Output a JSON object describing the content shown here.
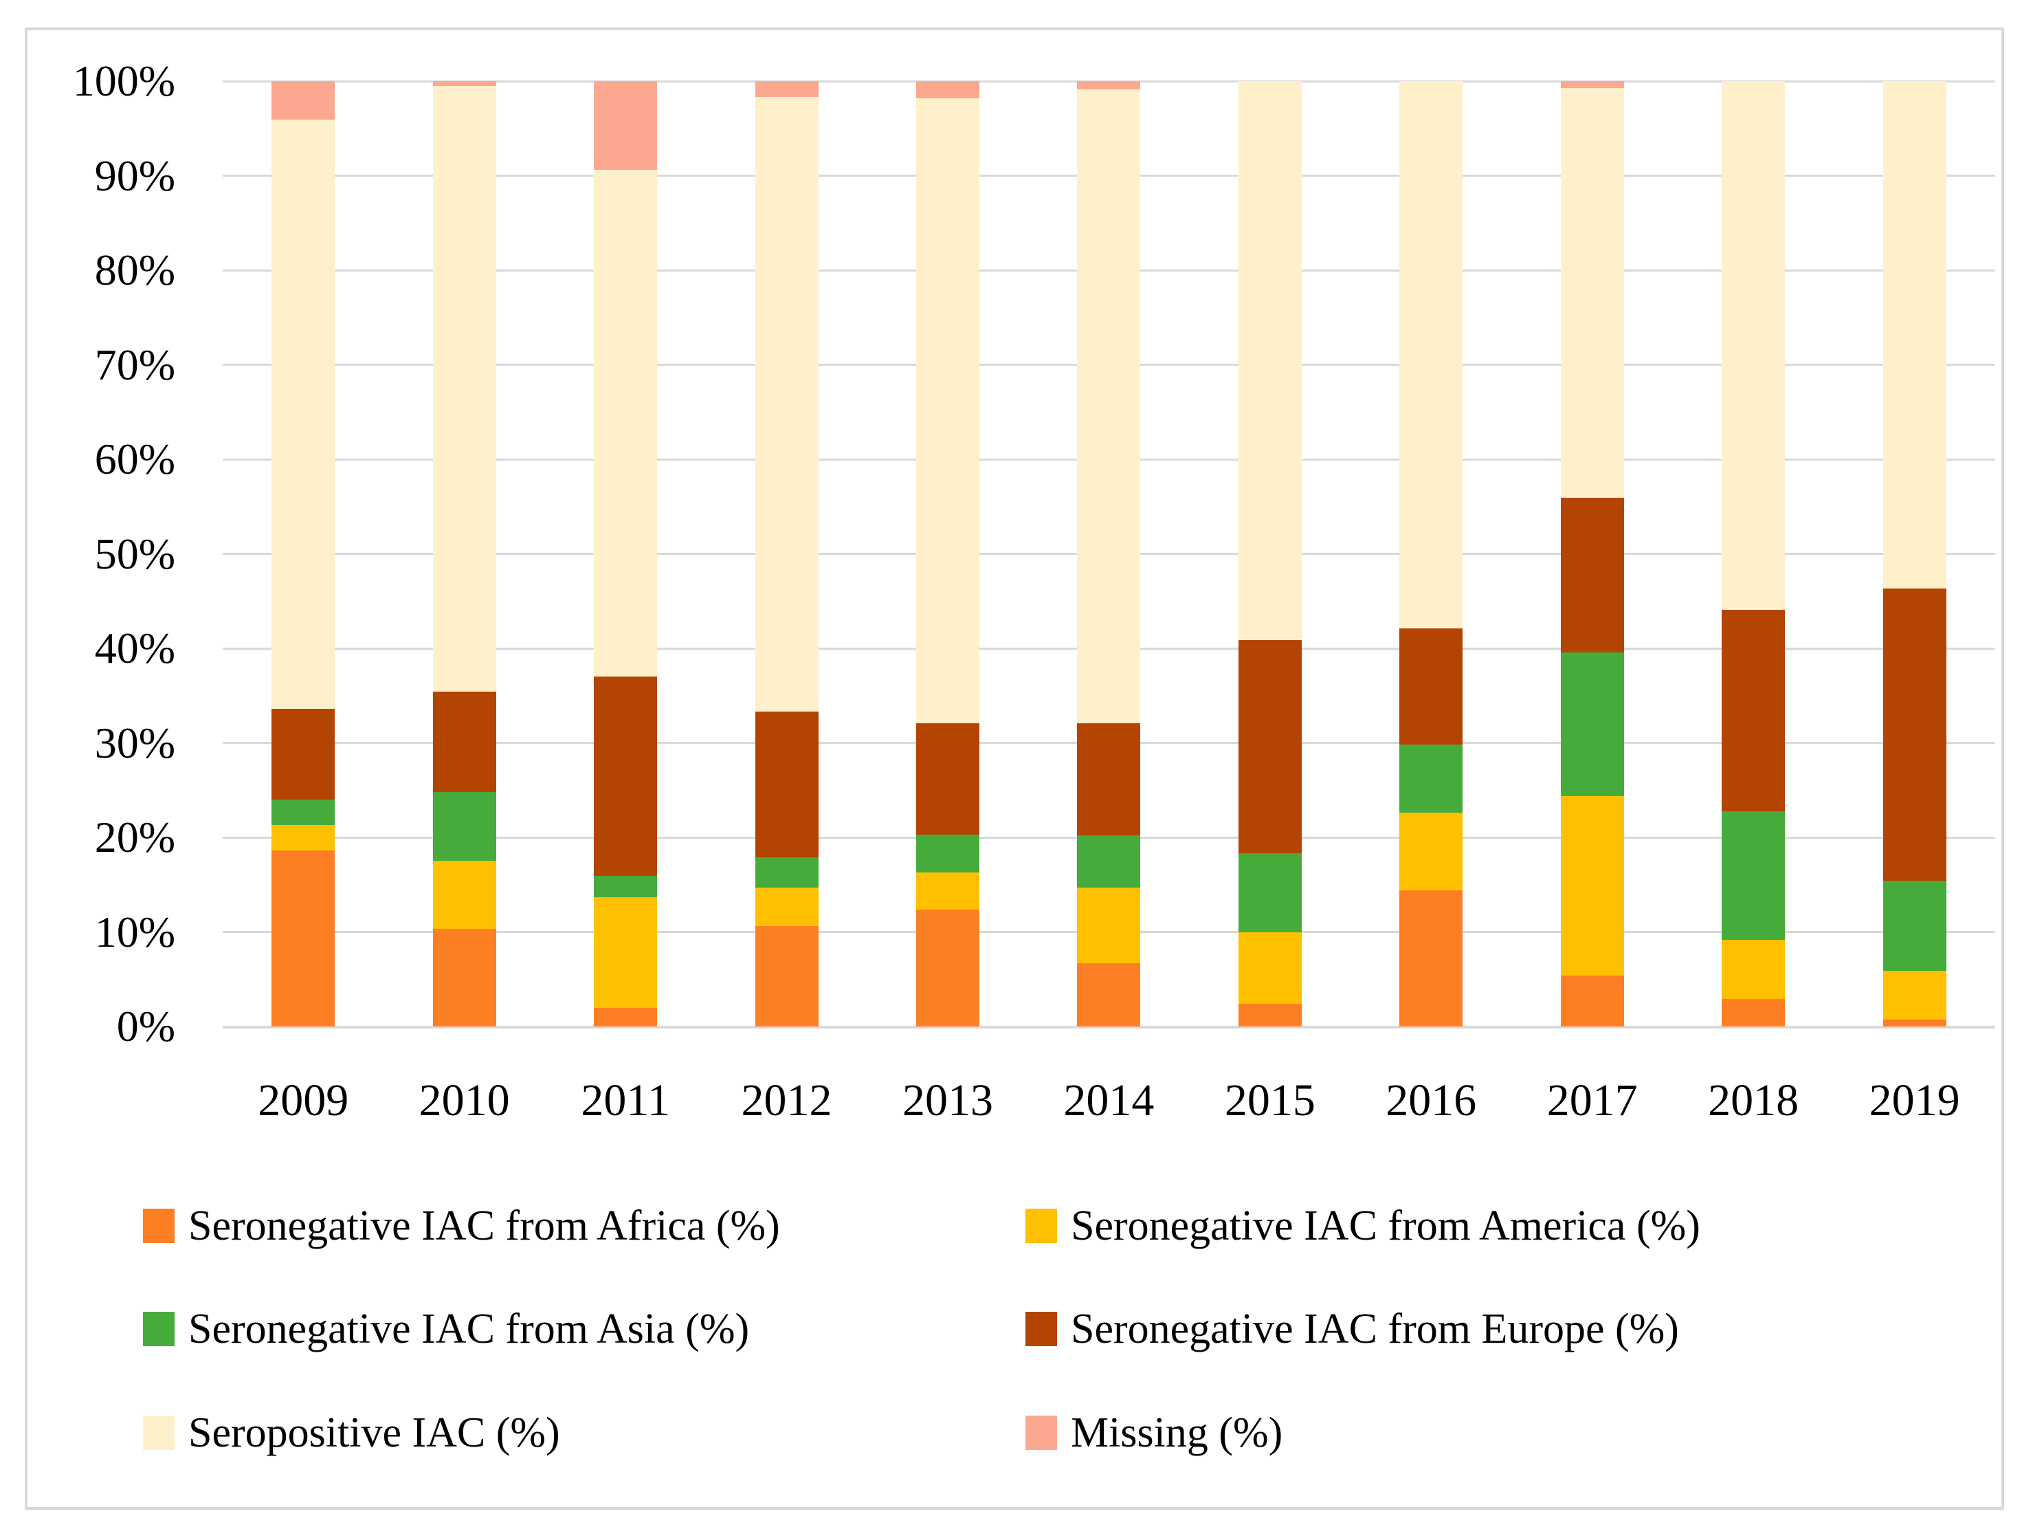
{
  "figure": {
    "background": "#FFFFFF",
    "border_color": "#D9D9D9"
  },
  "chart_data": {
    "type": "bar",
    "stacked": true,
    "percent_stacked": true,
    "title": "",
    "xlabel": "",
    "ylabel": "",
    "categories": [
      "2009",
      "2010",
      "2011",
      "2012",
      "2013",
      "2014",
      "2015",
      "2016",
      "2017",
      "2018",
      "2019"
    ],
    "series": [
      {
        "name": "Seronegative IAC from Africa (%)",
        "color": "#FD7E23",
        "values": [
          18.6,
          10.3,
          2.0,
          10.6,
          12.4,
          6.7,
          2.4,
          14.4,
          5.4,
          2.9,
          0.7
        ]
      },
      {
        "name": "Seronegative IAC from America (%)",
        "color": "#FFC000",
        "values": [
          2.7,
          7.2,
          11.7,
          4.1,
          3.9,
          8.0,
          7.6,
          8.2,
          19.0,
          6.3,
          5.2
        ]
      },
      {
        "name": "Seronegative IAC from Asia (%)",
        "color": "#45AC3B",
        "values": [
          2.7,
          7.3,
          2.2,
          3.2,
          4.0,
          5.5,
          8.3,
          7.2,
          15.2,
          13.6,
          9.5
        ]
      },
      {
        "name": "Seronegative IAC from Europe (%)",
        "color": "#B44402",
        "values": [
          9.6,
          10.6,
          21.1,
          15.4,
          11.8,
          11.9,
          22.6,
          12.3,
          16.3,
          21.3,
          30.9
        ]
      },
      {
        "name": "Seropositive IAC (%)",
        "color": "#FEF0CA",
        "values": [
          62.3,
          64.1,
          53.6,
          65.0,
          66.1,
          67.0,
          59.1,
          57.9,
          43.4,
          55.9,
          53.7
        ]
      },
      {
        "name": "Missing (%)",
        "color": "#FCA890",
        "values": [
          4.1,
          0.5,
          9.4,
          1.7,
          1.8,
          0.9,
          0.0,
          0.0,
          0.7,
          0.0,
          0.0
        ]
      }
    ],
    "y_ticks": [
      "100%",
      "90%",
      "80%",
      "70%",
      "60%",
      "50%",
      "40%",
      "30%",
      "20%",
      "10%",
      "0%"
    ],
    "ylim": [
      0,
      100
    ],
    "grid": true,
    "gridline_color": "#D9D9D9",
    "legend_position": "bottom"
  }
}
